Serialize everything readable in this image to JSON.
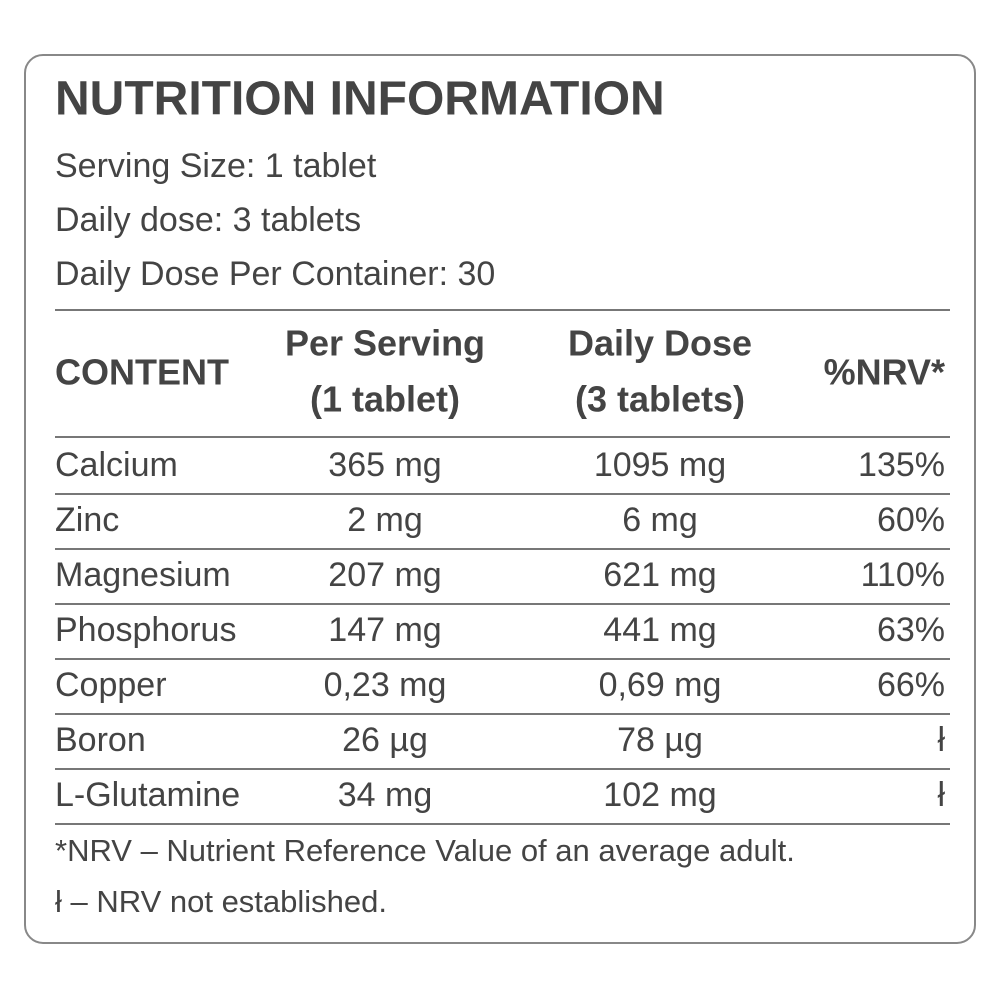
{
  "header": {
    "title": "NUTRITION INFORMATION",
    "lines": [
      "Serving Size: 1 tablet",
      "Daily dose: 3 tablets",
      "Daily Dose Per Container: 30"
    ]
  },
  "table": {
    "headers": [
      [
        "CONTENT"
      ],
      [
        "Per Serving",
        "(1 tablet)"
      ],
      [
        "Daily Dose",
        "(3 tablets)"
      ],
      [
        "%NRV*"
      ]
    ],
    "rows": [
      [
        "Calcium",
        "365 mg",
        "1095 mg",
        "135%"
      ],
      [
        "Zinc",
        "2 mg",
        "6 mg",
        "60%"
      ],
      [
        "Magnesium",
        "207 mg",
        "621 mg",
        "110%"
      ],
      [
        "Phosphorus",
        "147 mg",
        "441 mg",
        "63%"
      ],
      [
        "Copper",
        "0,23 mg",
        "0,69 mg",
        "66%"
      ],
      [
        "Boron",
        "26 µg",
        "78 µg",
        "ł"
      ],
      [
        "L-Glutamine",
        "34 mg",
        "102 mg",
        "ł"
      ]
    ]
  },
  "footnotes": [
    "*NRV – Nutrient Reference Value of an average adult.",
    "ł – NRV not established."
  ]
}
